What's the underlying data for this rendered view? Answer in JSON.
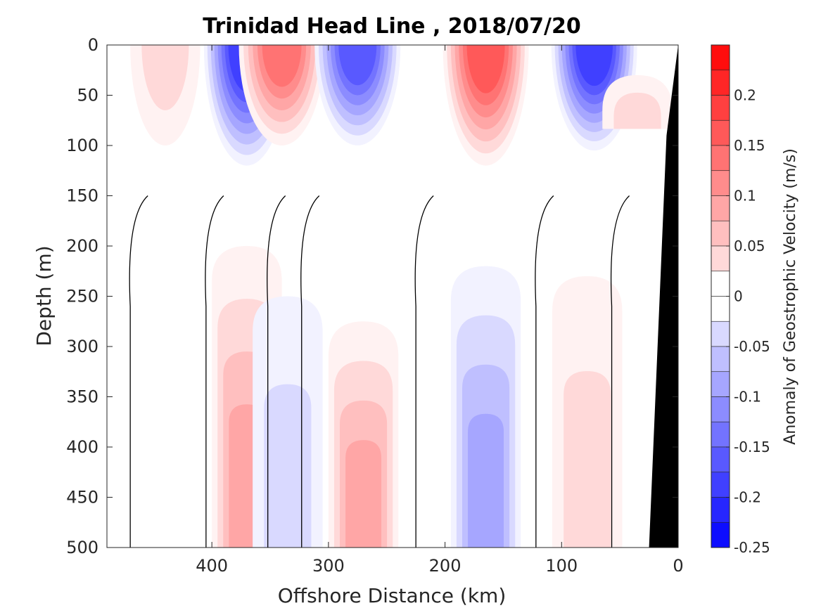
{
  "chart_data": {
    "type": "heatmap",
    "subtype": "filled-contour section",
    "title": "Trinidad Head Line , 2018/07/20",
    "xlabel": "Offshore Distance (km)",
    "ylabel": "Depth (m)",
    "xlim": [
      490,
      0
    ],
    "ylim": [
      0,
      500
    ],
    "x_reversed": true,
    "y_reversed": true,
    "xticks": [
      "400",
      "300",
      "200",
      "100",
      "0"
    ],
    "yticks": [
      "0",
      "50",
      "100",
      "150",
      "200",
      "250",
      "300",
      "350",
      "400",
      "450",
      "500"
    ],
    "colorbar": {
      "label": "Anomaly of Geostrophic Velocity (m/s)",
      "range": [
        -0.25,
        0.25
      ],
      "step": 0.025,
      "ticks": [
        "0.2",
        "0.15",
        "0.1",
        "0.05",
        "0",
        "-0.05",
        "-0.1",
        "-0.15",
        "-0.2",
        "-0.25"
      ]
    },
    "colors": {
      "positive": "#ff0000",
      "negative": "#0000ff",
      "neutral": "#ffffff",
      "bathymetry": "#000000",
      "contour": "#000000"
    },
    "features": [
      {
        "sign": "negative",
        "x_center": 370,
        "depth_top": 0,
        "depth_bottom": 120,
        "peak": -0.2
      },
      {
        "sign": "positive",
        "x_center": 340,
        "depth_top": 0,
        "depth_bottom": 100,
        "peak": 0.15
      },
      {
        "sign": "negative",
        "x_center": 275,
        "depth_top": 0,
        "depth_bottom": 100,
        "peak": -0.175
      },
      {
        "sign": "positive",
        "x_center": 165,
        "depth_top": 0,
        "depth_bottom": 120,
        "peak": 0.175
      },
      {
        "sign": "negative",
        "x_center": 72,
        "depth_top": 0,
        "depth_bottom": 105,
        "peak": -0.2
      },
      {
        "sign": "positive",
        "x_center": 440,
        "depth_top": 0,
        "depth_bottom": 100,
        "peak": 0.05
      },
      {
        "sign": "positive",
        "x_center": 35,
        "depth_top": 30,
        "depth_bottom": 80,
        "peak": 0.05
      },
      {
        "sign": "positive",
        "x_center": 370,
        "depth_top": 200,
        "depth_bottom": 500,
        "peak": 0.1
      },
      {
        "sign": "negative",
        "x_center": 335,
        "depth_top": 250,
        "depth_bottom": 500,
        "peak": -0.05
      },
      {
        "sign": "positive",
        "x_center": 270,
        "depth_top": 275,
        "depth_bottom": 500,
        "peak": 0.1
      },
      {
        "sign": "negative",
        "x_center": 165,
        "depth_top": 220,
        "depth_bottom": 500,
        "peak": -0.1
      },
      {
        "sign": "positive",
        "x_center": 78,
        "depth_top": 230,
        "depth_bottom": 500,
        "peak": 0.05
      }
    ]
  }
}
